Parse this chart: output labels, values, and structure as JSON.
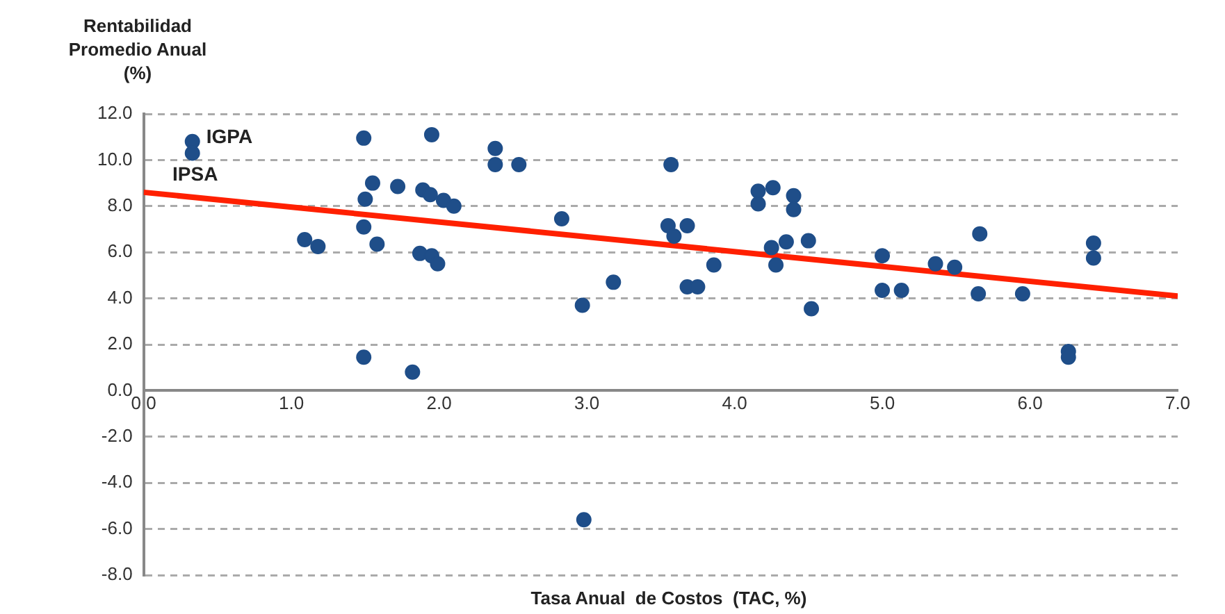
{
  "chart_data": {
    "type": "scatter",
    "xlabel": "Tasa Anual  de Costos  (TAC, %)",
    "ylabel": "Rentabilidad Promedio Anual (%)",
    "xlim": [
      0,
      7
    ],
    "xticks": [
      {
        "value": 0,
        "label": "0.0"
      },
      {
        "value": 1,
        "label": "1.0"
      },
      {
        "value": 2,
        "label": "2.0"
      },
      {
        "value": 3,
        "label": "3.0"
      },
      {
        "value": 4,
        "label": "4.0"
      },
      {
        "value": 5,
        "label": "5.0"
      },
      {
        "value": 6,
        "label": "6.0"
      },
      {
        "value": 7,
        "label": "7.0"
      }
    ],
    "ylim": [
      -8,
      12
    ],
    "yticks": [
      {
        "value": -8,
        "label": "-8.0"
      },
      {
        "value": -6,
        "label": "-6.0"
      },
      {
        "value": -4,
        "label": "-4.0"
      },
      {
        "value": -2,
        "label": "-2.0"
      },
      {
        "value": 0,
        "label": "0.0"
      },
      {
        "value": 2,
        "label": "2.0"
      },
      {
        "value": 4,
        "label": "4.0"
      },
      {
        "value": 6,
        "label": "6.0"
      },
      {
        "value": 8,
        "label": "8.0"
      },
      {
        "value": 10,
        "label": "10.0"
      },
      {
        "value": 12,
        "label": "12.0"
      }
    ],
    "grid": "y",
    "legend": false,
    "series": [
      {
        "color": "#1f4e89",
        "marker": "circle",
        "x": [
          0.33,
          0.33,
          1.49,
          1.95,
          1.55,
          1.72,
          1.5,
          1.89,
          1.94,
          2.03,
          2.1,
          1.49,
          1.09,
          1.18,
          1.58,
          1.87,
          1.95,
          1.99,
          1.49,
          1.82,
          2.38,
          2.38,
          2.54,
          2.83,
          2.97,
          3.18,
          3.57,
          3.55,
          3.59,
          3.68,
          3.68,
          3.75,
          3.86,
          4.16,
          4.16,
          4.26,
          4.4,
          4.4,
          4.25,
          4.35,
          4.28,
          4.5,
          4.52,
          5.0,
          5.0,
          5.13,
          5.36,
          5.49,
          5.66,
          5.65,
          5.95,
          6.26,
          6.26,
          6.43,
          6.43,
          2.98
        ],
        "values": [
          10.8,
          10.3,
          10.95,
          11.1,
          9.0,
          8.85,
          8.3,
          8.7,
          8.5,
          8.25,
          8.0,
          7.1,
          6.55,
          6.25,
          6.35,
          5.95,
          5.85,
          5.5,
          1.45,
          0.8,
          10.5,
          9.8,
          9.8,
          7.45,
          3.7,
          4.7,
          9.8,
          7.15,
          6.7,
          7.15,
          4.5,
          4.5,
          5.45,
          8.65,
          8.1,
          8.8,
          8.45,
          7.85,
          6.2,
          6.45,
          5.45,
          6.5,
          3.55,
          5.85,
          4.35,
          4.35,
          5.5,
          5.35,
          6.8,
          4.2,
          4.2,
          1.7,
          1.45,
          6.4,
          5.75,
          -5.6
        ]
      },
      {
        "type": "line",
        "marker": "none",
        "color": "#ff2000",
        "x": [
          0,
          7
        ],
        "values": [
          8.6,
          4.1
        ]
      }
    ],
    "annotations": [
      {
        "text": "IGPA",
        "x": 0.33,
        "y": 10.8
      },
      {
        "text": "IPSA",
        "x": 0.33,
        "y": 10.3
      }
    ]
  }
}
